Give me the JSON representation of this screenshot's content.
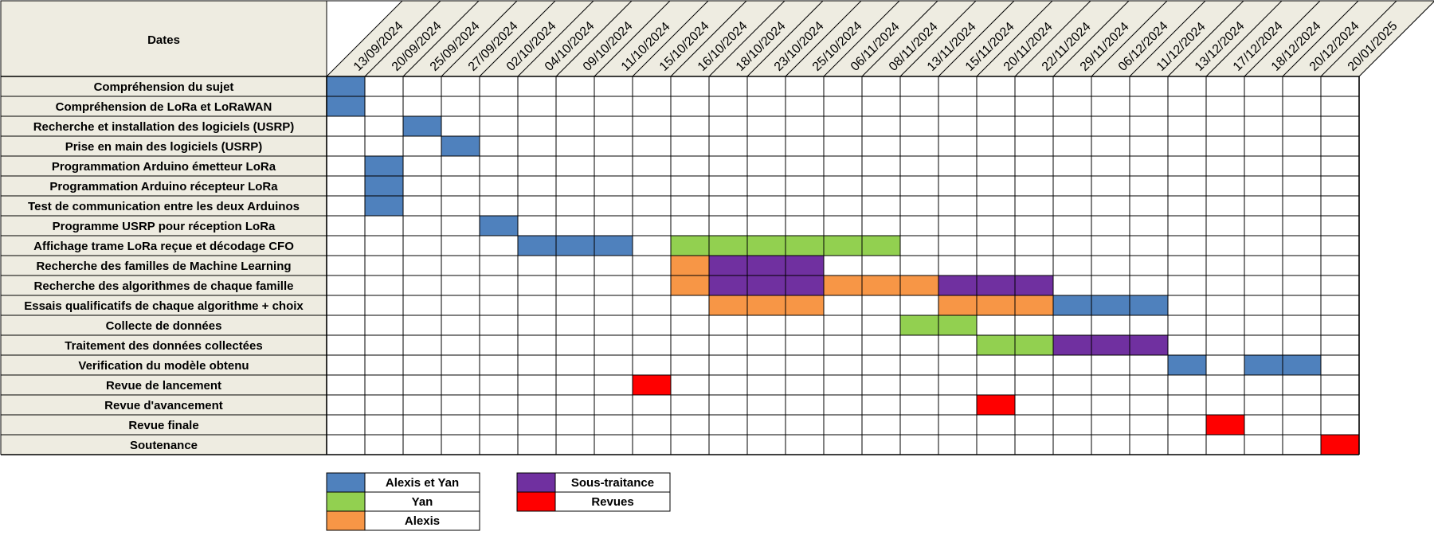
{
  "chart_data": {
    "type": "gantt",
    "header_label": "Dates",
    "dates": [
      "13/09/2024",
      "20/09/2024",
      "25/09/2024",
      "27/09/2024",
      "02/10/2024",
      "04/10/2024",
      "09/10/2024",
      "11/10/2024",
      "15/10/2024",
      "16/10/2024",
      "18/10/2024",
      "23/10/2024",
      "25/10/2024",
      "06/11/2024",
      "08/11/2024",
      "13/11/2024",
      "15/11/2024",
      "20/11/2024",
      "22/11/2024",
      "29/11/2024",
      "06/12/2024",
      "11/12/2024",
      "13/12/2024",
      "17/12/2024",
      "18/12/2024",
      "20/12/2024",
      "20/01/2025"
    ],
    "tasks": [
      {
        "label": "Compréhension du sujet",
        "cells": [
          {
            "date": "13/09/2024",
            "cat": "alexis_yan"
          }
        ]
      },
      {
        "label": "Compréhension de LoRa et LoRaWAN",
        "cells": [
          {
            "date": "13/09/2024",
            "cat": "alexis_yan"
          }
        ]
      },
      {
        "label": "Recherche et installation des logiciels (USRP)",
        "cells": [
          {
            "date": "25/09/2024",
            "cat": "alexis_yan"
          }
        ]
      },
      {
        "label": "Prise en main des logiciels (USRP)",
        "cells": [
          {
            "date": "27/09/2024",
            "cat": "alexis_yan"
          }
        ]
      },
      {
        "label": "Programmation Arduino émetteur LoRa",
        "cells": [
          {
            "date": "20/09/2024",
            "cat": "alexis_yan"
          }
        ]
      },
      {
        "label": "Programmation Arduino récepteur LoRa",
        "cells": [
          {
            "date": "20/09/2024",
            "cat": "alexis_yan"
          }
        ]
      },
      {
        "label": "Test de communication entre les deux Arduinos",
        "cells": [
          {
            "date": "20/09/2024",
            "cat": "alexis_yan"
          }
        ]
      },
      {
        "label": "Programme USRP pour réception LoRa",
        "cells": [
          {
            "date": "02/10/2024",
            "cat": "alexis_yan"
          }
        ]
      },
      {
        "label": "Affichage trame LoRa reçue et décodage CFO",
        "cells": [
          {
            "date": "04/10/2024",
            "cat": "alexis_yan"
          },
          {
            "date": "09/10/2024",
            "cat": "alexis_yan"
          },
          {
            "date": "11/10/2024",
            "cat": "alexis_yan"
          },
          {
            "date": "16/10/2024",
            "cat": "yan"
          },
          {
            "date": "18/10/2024",
            "cat": "yan"
          },
          {
            "date": "23/10/2024",
            "cat": "yan"
          },
          {
            "date": "25/10/2024",
            "cat": "yan"
          },
          {
            "date": "06/11/2024",
            "cat": "yan"
          },
          {
            "date": "08/11/2024",
            "cat": "yan"
          }
        ]
      },
      {
        "label": "Recherche des familles de Machine Learning",
        "cells": [
          {
            "date": "16/10/2024",
            "cat": "alexis"
          },
          {
            "date": "18/10/2024",
            "cat": "sous_traitance"
          },
          {
            "date": "23/10/2024",
            "cat": "sous_traitance"
          },
          {
            "date": "25/10/2024",
            "cat": "sous_traitance"
          }
        ]
      },
      {
        "label": "Recherche des algorithmes de chaque famille",
        "cells": [
          {
            "date": "16/10/2024",
            "cat": "alexis"
          },
          {
            "date": "18/10/2024",
            "cat": "sous_traitance"
          },
          {
            "date": "23/10/2024",
            "cat": "sous_traitance"
          },
          {
            "date": "25/10/2024",
            "cat": "sous_traitance"
          },
          {
            "date": "06/11/2024",
            "cat": "alexis"
          },
          {
            "date": "08/11/2024",
            "cat": "alexis"
          },
          {
            "date": "13/11/2024",
            "cat": "alexis"
          },
          {
            "date": "15/11/2024",
            "cat": "sous_traitance"
          },
          {
            "date": "20/11/2024",
            "cat": "sous_traitance"
          },
          {
            "date": "22/11/2024",
            "cat": "sous_traitance"
          }
        ]
      },
      {
        "label": "Essais qualificatifs de chaque algorithme + choix",
        "cells": [
          {
            "date": "18/10/2024",
            "cat": "alexis"
          },
          {
            "date": "23/10/2024",
            "cat": "alexis"
          },
          {
            "date": "25/10/2024",
            "cat": "alexis"
          },
          {
            "date": "15/11/2024",
            "cat": "alexis"
          },
          {
            "date": "20/11/2024",
            "cat": "alexis"
          },
          {
            "date": "22/11/2024",
            "cat": "alexis"
          },
          {
            "date": "29/11/2024",
            "cat": "alexis_yan"
          },
          {
            "date": "06/12/2024",
            "cat": "alexis_yan"
          },
          {
            "date": "11/12/2024",
            "cat": "alexis_yan"
          }
        ]
      },
      {
        "label": "Collecte de données",
        "cells": [
          {
            "date": "13/11/2024",
            "cat": "yan"
          },
          {
            "date": "15/11/2024",
            "cat": "yan"
          }
        ]
      },
      {
        "label": "Traitement des données collectées",
        "cells": [
          {
            "date": "20/11/2024",
            "cat": "yan"
          },
          {
            "date": "22/11/2024",
            "cat": "yan"
          },
          {
            "date": "29/11/2024",
            "cat": "sous_traitance"
          },
          {
            "date": "06/12/2024",
            "cat": "sous_traitance"
          },
          {
            "date": "11/12/2024",
            "cat": "sous_traitance"
          }
        ]
      },
      {
        "label": "Verification du modèle obtenu",
        "cells": [
          {
            "date": "13/12/2024",
            "cat": "alexis_yan"
          },
          {
            "date": "18/12/2024",
            "cat": "alexis_yan"
          },
          {
            "date": "20/12/2024",
            "cat": "alexis_yan"
          }
        ]
      },
      {
        "label": "Revue de lancement",
        "cells": [
          {
            "date": "15/10/2024",
            "cat": "revues"
          }
        ]
      },
      {
        "label": "Revue d'avancement",
        "cells": [
          {
            "date": "20/11/2024",
            "cat": "revues"
          }
        ]
      },
      {
        "label": "Revue finale",
        "cells": [
          {
            "date": "17/12/2024",
            "cat": "revues"
          }
        ]
      },
      {
        "label": "Soutenance",
        "cells": [
          {
            "date": "20/01/2025",
            "cat": "revues"
          }
        ]
      }
    ],
    "legend": [
      {
        "key": "alexis_yan",
        "label": "Alexis et Yan",
        "color": "#4f81bd"
      },
      {
        "key": "yan",
        "label": "Yan",
        "color": "#92d050"
      },
      {
        "key": "alexis",
        "label": "Alexis",
        "color": "#f79646"
      },
      {
        "key": "sous_traitance",
        "label": "Sous-traitance",
        "color": "#7030a0"
      },
      {
        "key": "revues",
        "label": "Revues",
        "color": "#ff0000"
      }
    ],
    "header_fill": "#eeece1",
    "label_fill": "#eeece1"
  }
}
